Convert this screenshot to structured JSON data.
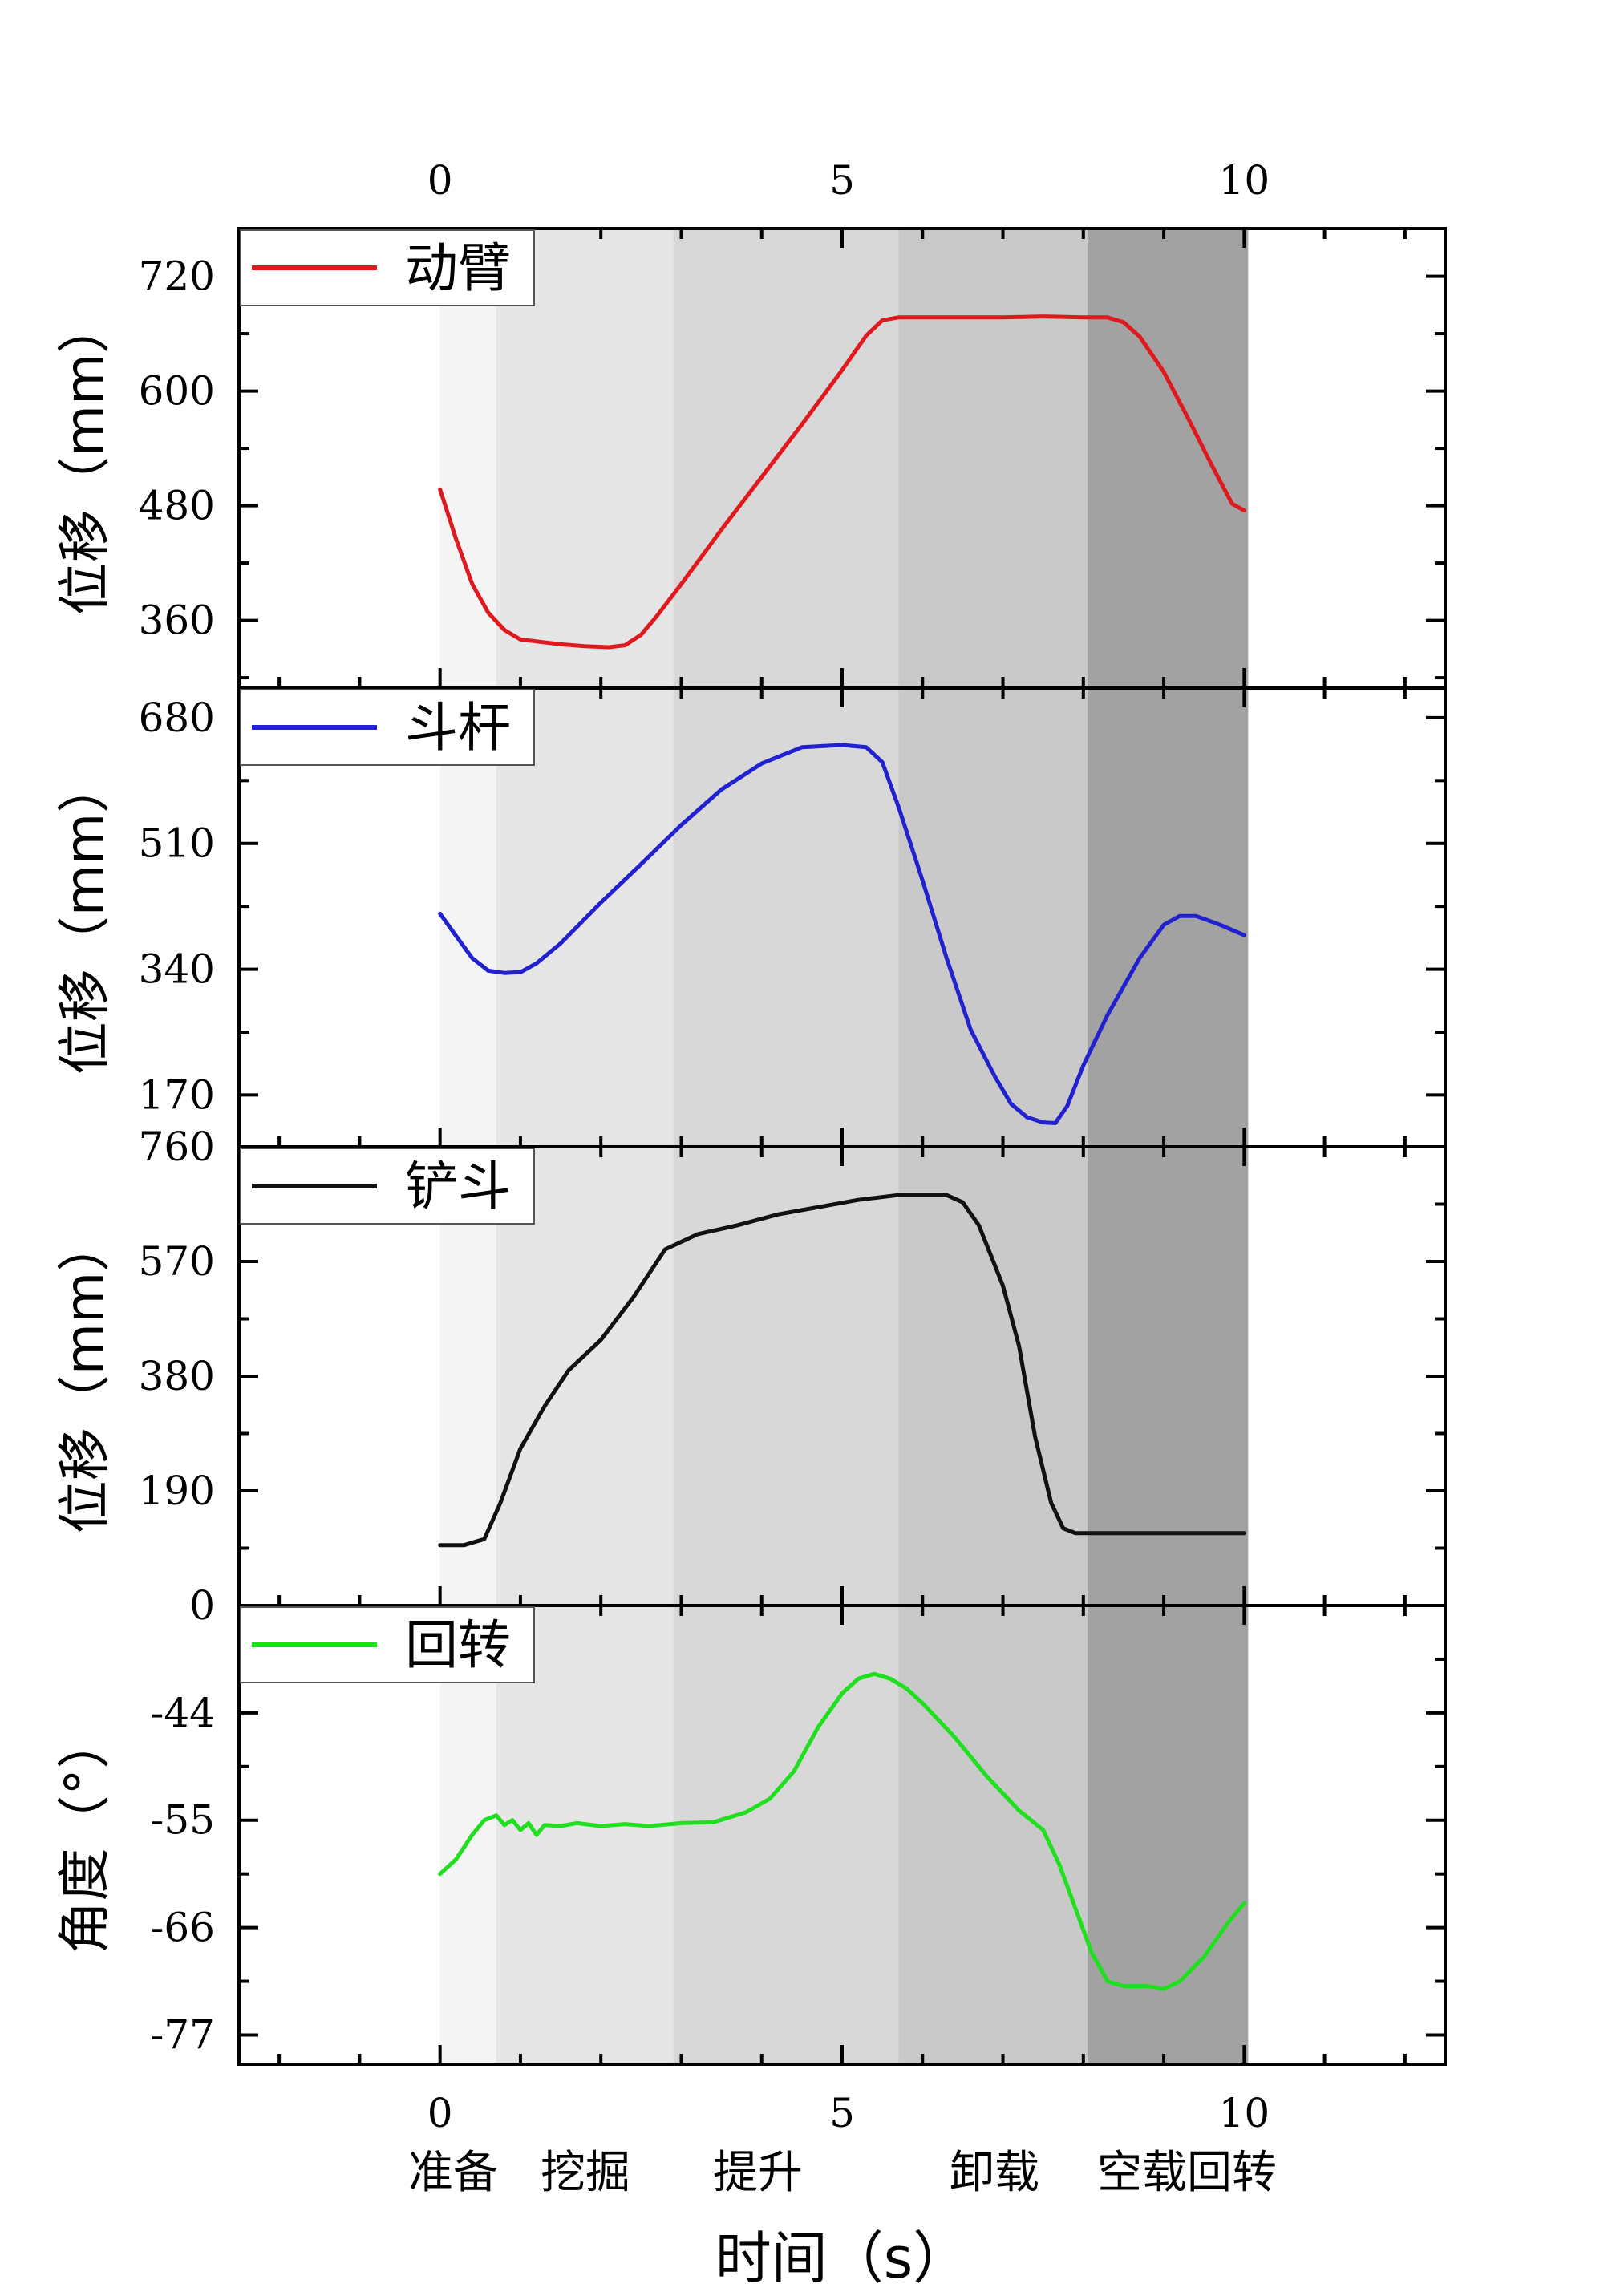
{
  "chart_data": {
    "type": "line",
    "x_ticks": [
      "0",
      "5",
      "10"
    ],
    "x_tick_values": [
      0,
      5,
      10
    ],
    "xlim": [
      -2.5,
      12.5
    ],
    "xlabel": "时间（s）",
    "phases": [
      {
        "label": "准备",
        "start": 0,
        "end": 0.7,
        "color": "#f4f4f4"
      },
      {
        "label": "挖掘",
        "start": 0.7,
        "end": 2.9,
        "color": "#e6e6e6"
      },
      {
        "label": "提升",
        "start": 2.9,
        "end": 5.7,
        "color": "#d8d8d8"
      },
      {
        "label": "卸载",
        "start": 5.7,
        "end": 8.05,
        "color": "#c9c9c9"
      },
      {
        "label": "空载回转",
        "start": 8.05,
        "end": 10.05,
        "color": "#a2a2a2"
      }
    ],
    "panels": [
      {
        "ylabel": "位移（mm）",
        "ylim": [
          290,
          770
        ],
        "yticks": [
          360,
          480,
          600,
          720
        ],
        "ytick_labels": [
          "360",
          "480",
          "600",
          "720"
        ],
        "series": [
          {
            "name": "动臂",
            "color": "#e0191e",
            "x": [
              0,
              0.2,
              0.4,
              0.6,
              0.8,
              1.0,
              1.2,
              1.5,
              1.8,
              2.1,
              2.3,
              2.5,
              2.7,
              3.0,
              3.5,
              4.0,
              4.5,
              5.0,
              5.3,
              5.5,
              5.7,
              6.0,
              6.5,
              7.0,
              7.5,
              8.0,
              8.3,
              8.5,
              8.7,
              9.0,
              9.3,
              9.6,
              9.85,
              10.0
            ],
            "y": [
              497,
              445,
              398,
              368,
              350,
              340,
              338,
              335,
              333,
              332,
              334,
              345,
              365,
              398,
              455,
              510,
              565,
              622,
              658,
              674,
              677,
              677,
              677,
              677,
              678,
              677,
              677,
              672,
              657,
              620,
              572,
              522,
              482,
              475
            ]
          }
        ]
      },
      {
        "ylabel": "位移（mm）",
        "ylim": [
          100,
          720
        ],
        "yticks": [
          170,
          340,
          510,
          680
        ],
        "ytick_labels": [
          "170",
          "340",
          "510",
          "680"
        ],
        "series": [
          {
            "name": "斗杆",
            "color": "#2121d0",
            "x": [
              0,
              0.2,
              0.4,
              0.6,
              0.8,
              1.0,
              1.2,
              1.5,
              2.0,
              2.5,
              3.0,
              3.5,
              4.0,
              4.5,
              5.0,
              5.3,
              5.5,
              5.7,
              6.0,
              6.3,
              6.6,
              6.9,
              7.1,
              7.3,
              7.5,
              7.65,
              7.8,
              8.0,
              8.3,
              8.7,
              9.0,
              9.2,
              9.4,
              9.7,
              10.0
            ],
            "y": [
              415,
              385,
              355,
              338,
              335,
              336,
              348,
              375,
              430,
              482,
              535,
              583,
              618,
              640,
              643,
              640,
              620,
              560,
              460,
              355,
              258,
              195,
              158,
              140,
              133,
              132,
              155,
              210,
              278,
              355,
              400,
              412,
              412,
              400,
              386
            ]
          }
        ]
      },
      {
        "ylabel": "位移（mm）",
        "ylim": [
          0,
          760
        ],
        "yticks": [
          0,
          190,
          380,
          570,
          760
        ],
        "ytick_labels": [
          "0",
          "190",
          "380",
          "570",
          "760"
        ],
        "series": [
          {
            "name": "铲斗",
            "color": "#111111",
            "x": [
              0,
              0.3,
              0.55,
              0.75,
              1.0,
              1.3,
              1.6,
              2.0,
              2.4,
              2.8,
              3.2,
              3.7,
              4.2,
              4.7,
              5.2,
              5.7,
              6.0,
              6.3,
              6.5,
              6.7,
              7.0,
              7.2,
              7.4,
              7.6,
              7.75,
              7.9,
              8.05,
              8.5,
              9.0,
              9.5,
              10.0
            ],
            "y": [
              100,
              100,
              110,
              170,
              260,
              330,
              390,
              440,
              510,
              590,
              615,
              630,
              648,
              660,
              672,
              680,
              680,
              680,
              668,
              630,
              530,
              430,
              280,
              170,
              128,
              120,
              120,
              120,
              120,
              120,
              120
            ]
          }
        ]
      },
      {
        "ylabel": "角度（°）",
        "ylim": [
          -80,
          -33
        ],
        "yticks": [
          -77,
          -66,
          -55,
          -44
        ],
        "ytick_labels": [
          "-77",
          "-66",
          "-55",
          "-44"
        ],
        "series": [
          {
            "name": "回转",
            "color": "#1fe01f",
            "x": [
              0,
              0.2,
              0.4,
              0.55,
              0.7,
              0.8,
              0.9,
              1.0,
              1.1,
              1.2,
              1.3,
              1.5,
              1.7,
              2.0,
              2.3,
              2.6,
              3.0,
              3.4,
              3.8,
              4.1,
              4.4,
              4.7,
              5.0,
              5.2,
              5.4,
              5.6,
              5.8,
              6.0,
              6.4,
              6.8,
              7.2,
              7.5,
              7.7,
              7.9,
              8.1,
              8.3,
              8.5,
              8.8,
              9.0,
              9.2,
              9.5,
              9.8,
              10.0
            ],
            "y": [
              -60.5,
              -59.0,
              -56.5,
              -55.0,
              -54.5,
              -55.5,
              -55.0,
              -56.0,
              -55.3,
              -56.5,
              -55.5,
              -55.6,
              -55.3,
              -55.6,
              -55.4,
              -55.6,
              -55.3,
              -55.2,
              -54.2,
              -52.8,
              -50.0,
              -45.5,
              -42.0,
              -40.5,
              -40.0,
              -40.5,
              -41.5,
              -43.0,
              -46.5,
              -50.5,
              -54.0,
              -56.0,
              -59.5,
              -64.0,
              -68.5,
              -71.5,
              -72.0,
              -72.0,
              -72.3,
              -71.5,
              -69.0,
              -65.5,
              -63.5
            ]
          }
        ]
      }
    ]
  }
}
